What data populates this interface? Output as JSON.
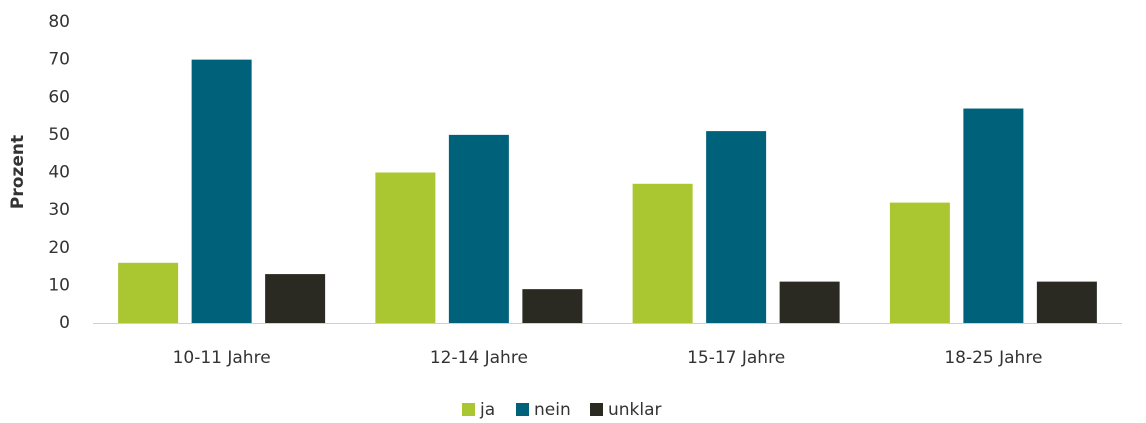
{
  "chart_data": {
    "type": "bar",
    "y_label": "Prozent",
    "categories": [
      "10-11 Jahre",
      "12-14 Jahre",
      "15-17 Jahre",
      "18-25 Jahre"
    ],
    "series": [
      {
        "name": "ja",
        "color": "#aac731",
        "values": [
          16,
          40,
          37,
          32
        ]
      },
      {
        "name": "nein",
        "color": "#00617a",
        "values": [
          70,
          50,
          51,
          57
        ]
      },
      {
        "name": "unklar",
        "color": "#2b2a22",
        "values": [
          13,
          9,
          11,
          11
        ]
      }
    ],
    "ylim": [
      0,
      80
    ],
    "yticks": [
      0,
      10,
      20,
      30,
      40,
      50,
      60,
      70,
      80
    ],
    "legend": "bottom"
  }
}
